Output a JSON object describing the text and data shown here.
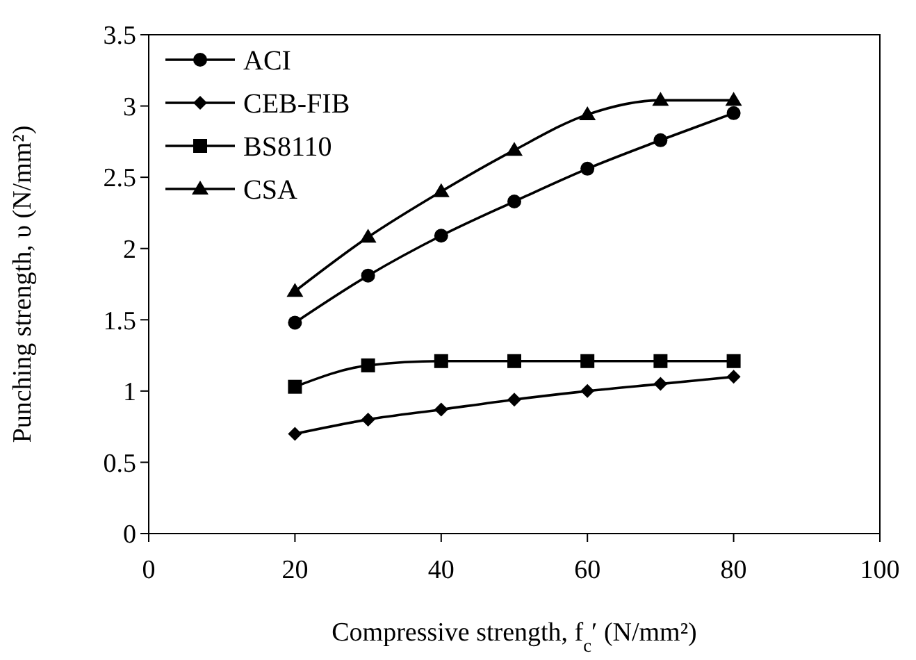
{
  "chart_data": {
    "type": "line",
    "xlabel": "Compressive strength, f$_{c}$′ (N/mm²)",
    "ylabel": "Punching strength, υ (N/mm²)",
    "x": [
      20,
      30,
      40,
      50,
      60,
      70,
      80
    ],
    "xlim": [
      0,
      100
    ],
    "xticks": [
      0,
      20,
      40,
      60,
      80,
      100
    ],
    "ylim": [
      0,
      3.5
    ],
    "yticks": [
      0,
      0.5,
      1,
      1.5,
      2,
      2.5,
      3,
      3.5
    ],
    "grid": false,
    "legend": "top left",
    "line_style": "solid",
    "series": [
      {
        "name": "ACI",
        "color": "#000000",
        "marker": "circle",
        "values": [
          1.48,
          1.81,
          2.09,
          2.33,
          2.56,
          2.76,
          2.95
        ]
      },
      {
        "name": "CEB-FIB",
        "color": "#000000",
        "marker": "diamond",
        "values": [
          0.7,
          0.8,
          0.87,
          0.94,
          1.0,
          1.05,
          1.1
        ]
      },
      {
        "name": "BS8110",
        "color": "#000000",
        "marker": "square",
        "values": [
          1.03,
          1.18,
          1.21,
          1.21,
          1.21,
          1.21,
          1.21
        ]
      },
      {
        "name": "CSA",
        "color": "#000000",
        "marker": "triangle",
        "values": [
          1.7,
          2.08,
          2.4,
          2.69,
          2.94,
          3.04,
          3.04
        ]
      }
    ]
  }
}
